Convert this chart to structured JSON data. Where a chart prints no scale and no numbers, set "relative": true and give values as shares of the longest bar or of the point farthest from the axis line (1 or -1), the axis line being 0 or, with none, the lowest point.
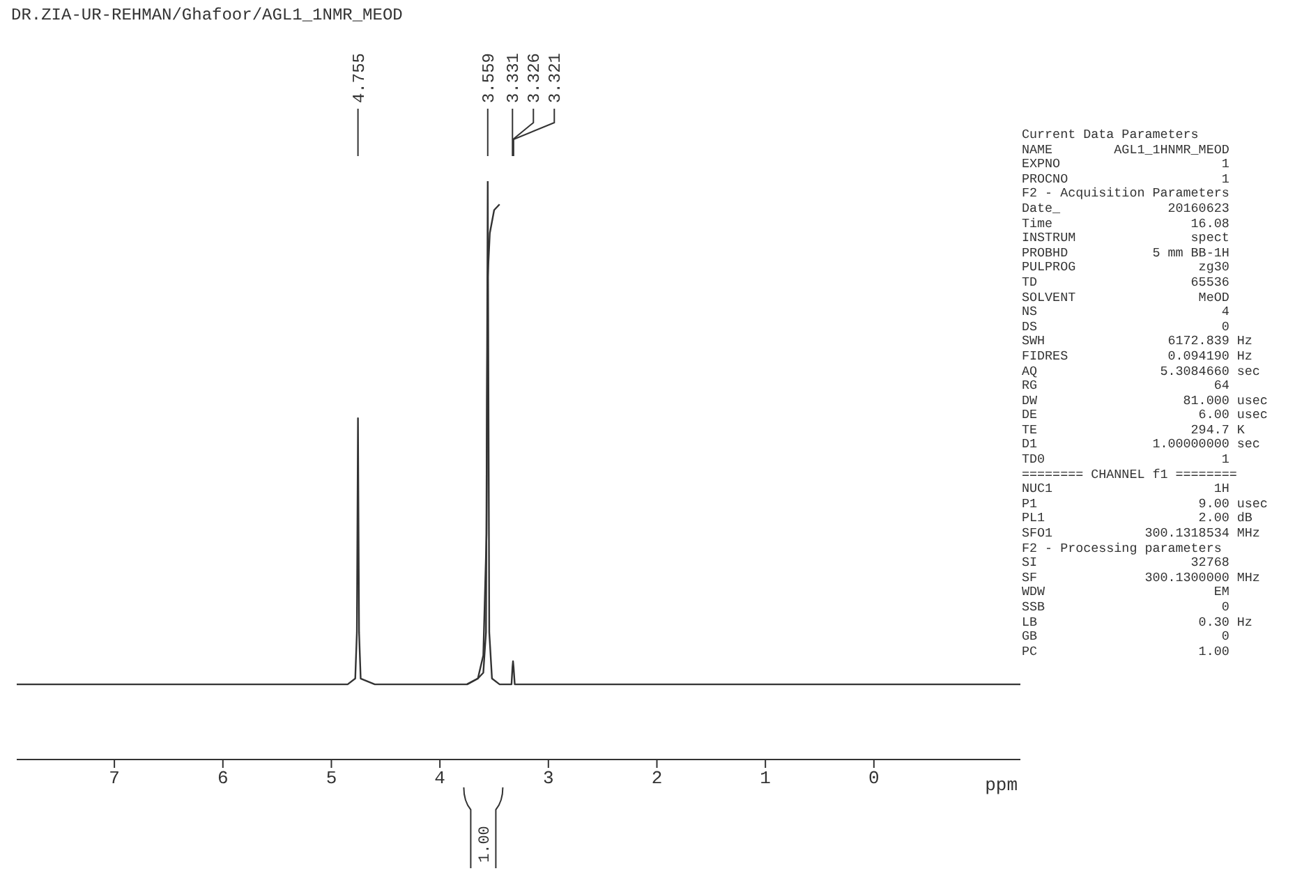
{
  "chart_data": {
    "type": "line",
    "relative": true,
    "title": "DR.ZIA-UR-REHMAN/Ghafoor/AGL1_1NMR_MEOD",
    "xlabel": "ppm",
    "xlim": [
      7.9,
      -1.35
    ],
    "xticks": [
      7,
      6,
      5,
      4,
      3,
      2,
      1,
      0
    ],
    "marker": "none",
    "series": [
      {
        "color": "#333333",
        "x": [
          7.9,
          4.85,
          4.78,
          4.765,
          4.755,
          4.745,
          4.73,
          4.6,
          3.75,
          3.65,
          3.6,
          3.575,
          3.559,
          3.545,
          3.52,
          3.45,
          3.34,
          3.331,
          3.326,
          3.321,
          3.31,
          -1.35
        ],
        "values": [
          0.13,
          0.13,
          0.14,
          0.22,
          0.59,
          0.22,
          0.14,
          0.13,
          0.13,
          0.14,
          0.15,
          0.22,
          1,
          0.22,
          0.14,
          0.13,
          0.13,
          0.16,
          0.17,
          0.16,
          0.13,
          0.13
        ]
      },
      {
        "color": "#333333",
        "x": [
          3.75,
          3.65,
          3.6,
          3.57,
          3.56,
          3.54,
          3.5,
          3.45
        ],
        "values": [
          0.13,
          0.14,
          0.18,
          0.39,
          0.83,
          0.91,
          0.95,
          0.96
        ]
      }
    ],
    "annotations": [
      {
        "text": "4.755",
        "x": 4.755
      },
      {
        "text": "3.559",
        "x": 3.559
      },
      {
        "text": "3.331",
        "x": 3.331
      },
      {
        "text": "3.326",
        "x": 3.326
      },
      {
        "text": "3.321",
        "x": 3.321
      },
      "1.00",
      "Current Data Parameters",
      "NAME        AGL1_1HNMR_MEOD",
      "EXPNO                     1",
      "PROCNO                    1",
      "F2 - Acquisition Parameters",
      "Date_              20160623",
      "Time                  16.08",
      "INSTRUM               spect",
      "PROBHD           5 mm BB-1H",
      "PULPROG                zg30",
      "TD                    65536",
      "SOLVENT                MeOD",
      "NS                        4",
      "DS                        0",
      "SWH                6172.839 Hz",
      "FIDRES             0.094190 Hz",
      "AQ                5.3084660 sec",
      "RG                       64",
      "DW                   81.000 usec",
      "DE                     6.00 usec",
      "TE                    294.7 K",
      "D1               1.00000000 sec",
      "TD0                       1",
      "======== CHANNEL f1 ========",
      "NUC1                     1H",
      "P1                     9.00 usec",
      "PL1                    2.00 dB",
      "SFO1            300.1318534 MHz",
      "F2 - Processing parameters",
      "SI                    32768",
      "SF              300.1300000 MHz",
      "WDW                      EM",
      "SSB                       0",
      "LB                     0.30 Hz",
      "GB                        0",
      "PC                     1.00"
    ]
  }
}
